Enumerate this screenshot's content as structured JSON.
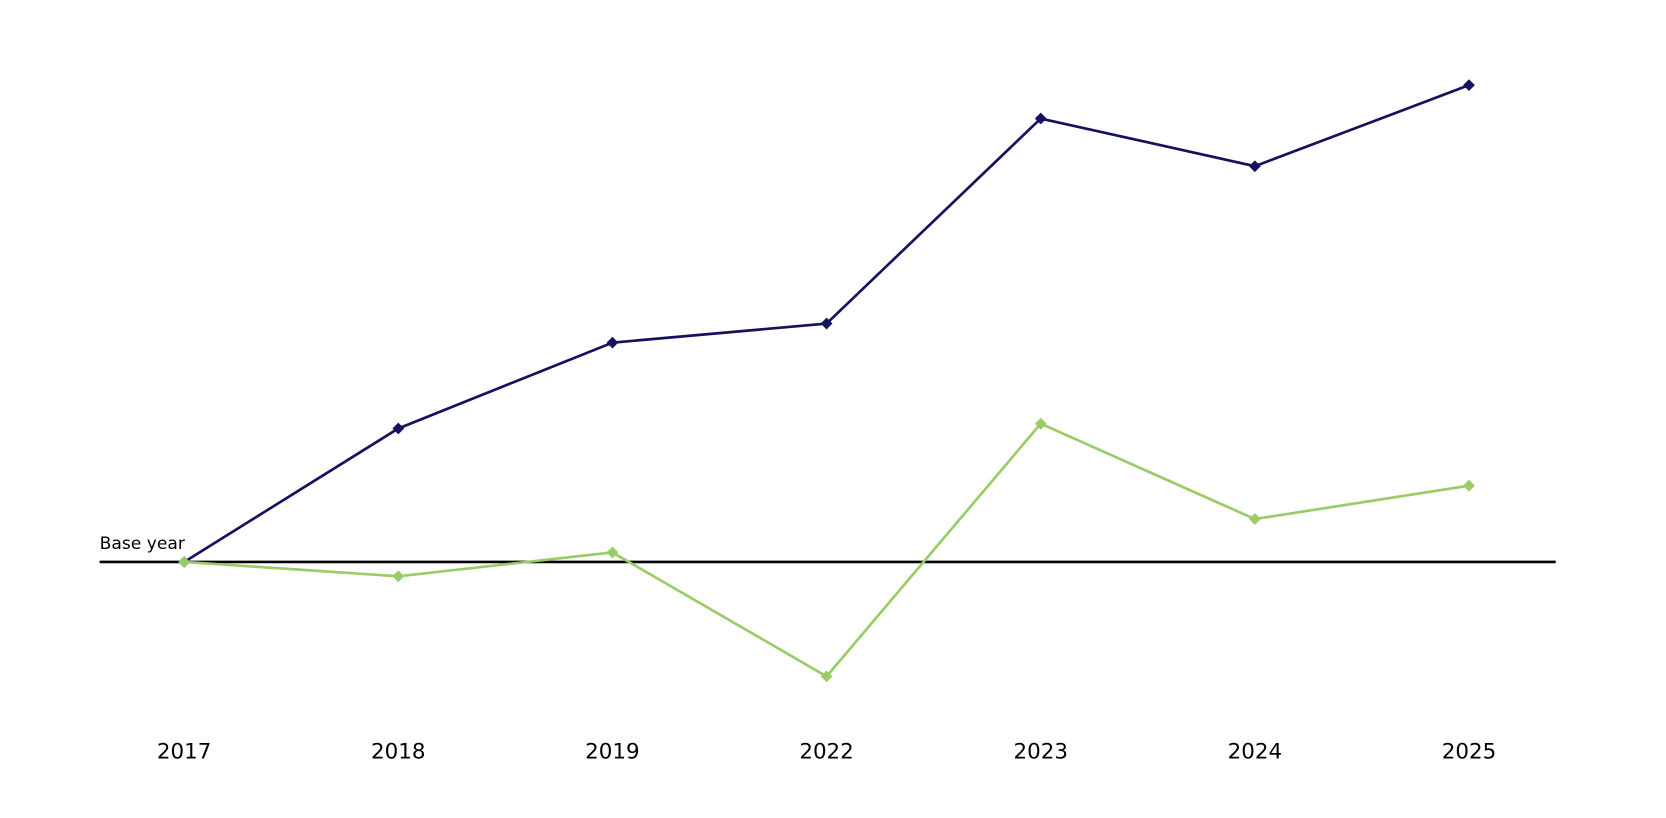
{
  "chart_data": {
    "type": "line",
    "categories": [
      "2017",
      "2018",
      "2019",
      "2022",
      "2023",
      "2024",
      "2025"
    ],
    "series": [
      {
        "color": "#12125e",
        "values": [
          0,
          28,
          46,
          50,
          93,
          83,
          100
        ]
      },
      {
        "color": "#99cc66",
        "values": [
          0,
          -3,
          2,
          -24,
          29,
          9,
          16
        ]
      }
    ],
    "reference_line": {
      "value": 0,
      "label": "Base year",
      "color": "#000000"
    },
    "ylim": [
      -40,
      110
    ],
    "marker": "diamond"
  }
}
